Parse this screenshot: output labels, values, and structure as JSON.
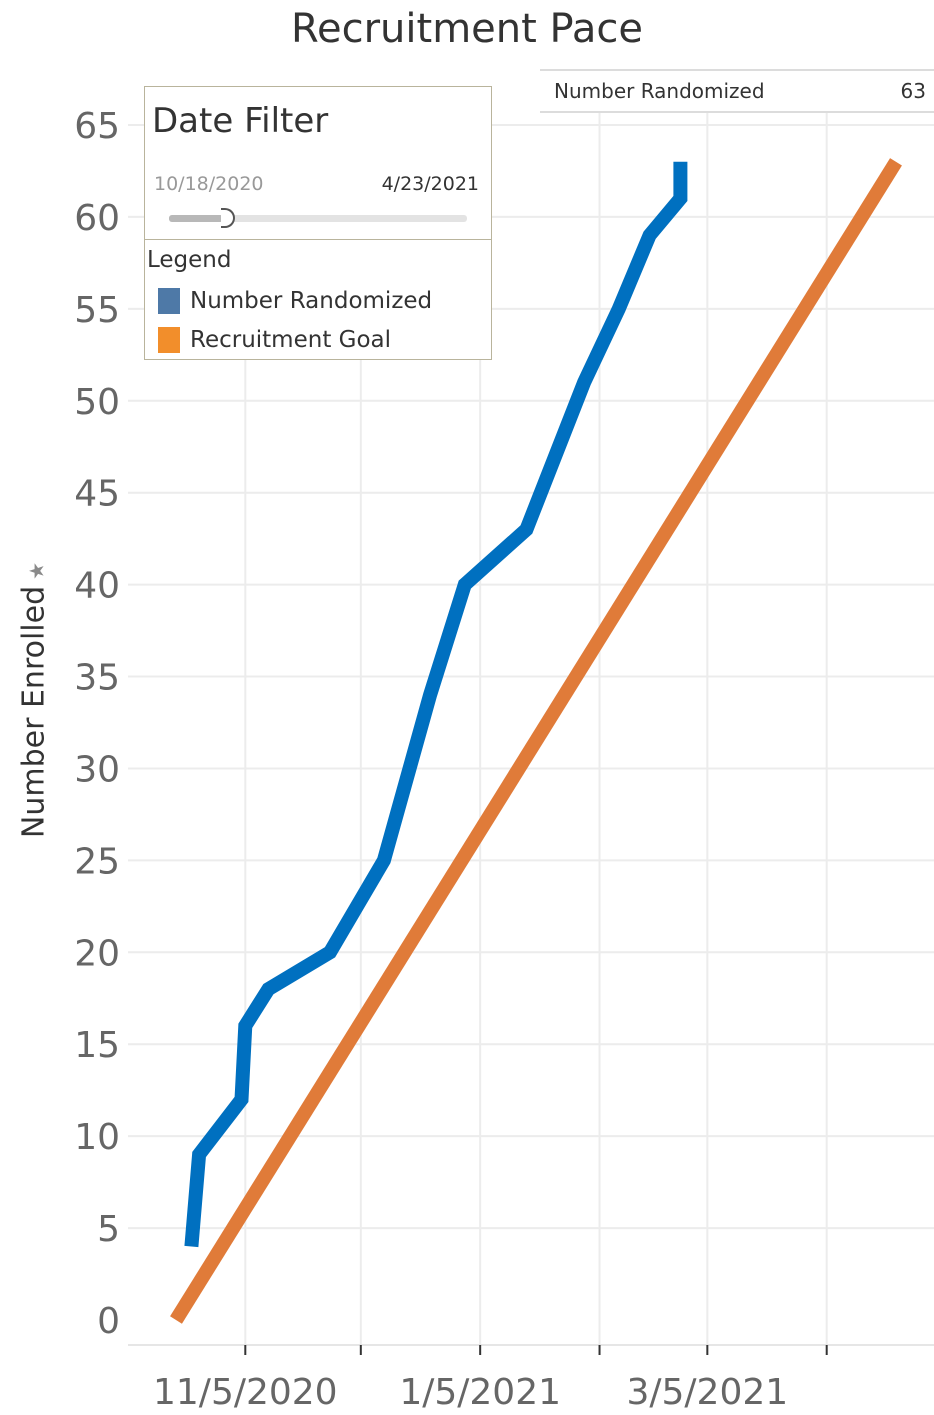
{
  "chart_data": {
    "type": "line",
    "title": "Recruitment Pace",
    "ylabel": "Number Enrolled",
    "xlabel": "",
    "ylim": [
      0,
      65
    ],
    "yticks": [
      0,
      5,
      10,
      15,
      20,
      25,
      30,
      35,
      40,
      45,
      50,
      55,
      60,
      65
    ],
    "xlim": [
      "2020-10-18",
      "2021-04-23"
    ],
    "xticks": [
      "2020-11-05",
      "2021-01-05",
      "2021-03-05"
    ],
    "xtick_labels": [
      "11/5/2020",
      "1/5/2021",
      "3/5/2021"
    ],
    "minor_xticks": [
      "2020-12-05",
      "2021-02-05",
      "2021-04-05"
    ],
    "grid": true,
    "series": [
      {
        "name": "Number Randomized",
        "color": "#0070c0",
        "points": [
          {
            "x": "2020-10-22",
            "y": 4
          },
          {
            "x": "2020-10-24",
            "y": 9
          },
          {
            "x": "2020-11-04",
            "y": 12
          },
          {
            "x": "2020-11-05",
            "y": 16
          },
          {
            "x": "2020-11-11",
            "y": 18
          },
          {
            "x": "2020-11-27",
            "y": 20
          },
          {
            "x": "2020-12-11",
            "y": 25
          },
          {
            "x": "2020-12-23",
            "y": 34
          },
          {
            "x": "2021-01-01",
            "y": 40
          },
          {
            "x": "2021-01-17",
            "y": 43
          },
          {
            "x": "2021-02-01",
            "y": 51
          },
          {
            "x": "2021-02-10",
            "y": 55
          },
          {
            "x": "2021-02-18",
            "y": 59
          },
          {
            "x": "2021-02-26",
            "y": 61
          },
          {
            "x": "2021-02-26",
            "y": 63
          }
        ]
      },
      {
        "name": "Recruitment Goal",
        "color": "#e07b39",
        "points": [
          {
            "x": "2020-10-18",
            "y": 0
          },
          {
            "x": "2021-04-23",
            "y": 63
          }
        ]
      }
    ]
  },
  "kpi": {
    "label": "Number Randomized",
    "value": "63"
  },
  "filter": {
    "title": "Date Filter",
    "min_date": "10/18/2020",
    "max_date": "4/23/2021",
    "handle_position": 0.15
  },
  "legend": {
    "title": "Legend",
    "items": [
      {
        "label": "Number Randomized",
        "color": "#4e79a7"
      },
      {
        "label": "Recruitment Goal",
        "color": "#f28e2b"
      }
    ]
  },
  "icons": {
    "pin": "pin-icon"
  }
}
